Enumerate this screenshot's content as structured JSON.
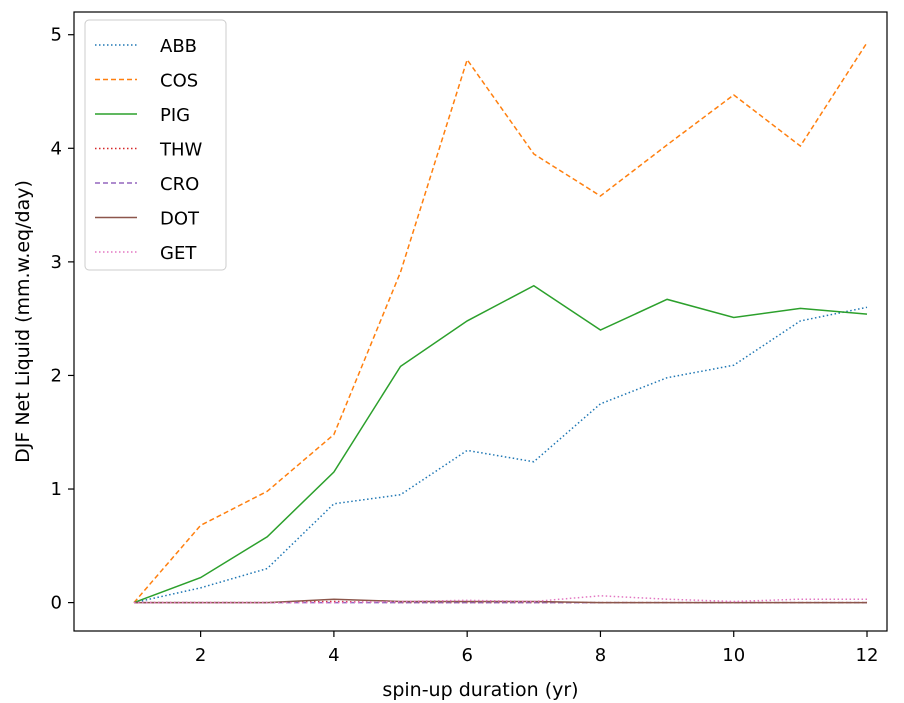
{
  "chart_data": {
    "type": "line",
    "title": "",
    "xlabel": "spin-up duration (yr)",
    "ylabel": "DJF Net Liquid (mm.w.eq/day)",
    "xlim": [
      0.1,
      12.3
    ],
    "ylim": [
      -0.25,
      5.2
    ],
    "xticks": [
      2,
      4,
      6,
      8,
      10,
      12
    ],
    "yticks": [
      0,
      1,
      2,
      3,
      4,
      5
    ],
    "grid": false,
    "legend_position": "top-left",
    "x": [
      1,
      2,
      3,
      4,
      5,
      6,
      7,
      8,
      9,
      10,
      11,
      12
    ],
    "series": [
      {
        "name": "ABB",
        "color": "#1f77b4",
        "linestyle": "dotted",
        "values": [
          0.0,
          0.13,
          0.3,
          0.87,
          0.95,
          1.34,
          1.24,
          1.75,
          1.98,
          2.09,
          2.48,
          2.6
        ]
      },
      {
        "name": "COS",
        "color": "#ff7f0e",
        "linestyle": "dashed",
        "values": [
          0.0,
          0.68,
          0.98,
          1.48,
          2.91,
          4.78,
          3.95,
          3.58,
          4.03,
          4.47,
          4.02,
          4.93
        ]
      },
      {
        "name": "PIG",
        "color": "#2ca02c",
        "linestyle": "solid",
        "values": [
          0.0,
          0.22,
          0.58,
          1.15,
          2.08,
          2.48,
          2.79,
          2.4,
          2.67,
          2.51,
          2.59,
          2.54
        ]
      },
      {
        "name": "THW",
        "color": "#d62728",
        "linestyle": "dotted",
        "values": [
          0.0,
          0.0,
          0.0,
          0.01,
          0.0,
          0.0,
          0.0,
          0.0,
          0.0,
          0.0,
          0.0,
          0.0
        ]
      },
      {
        "name": "CRO",
        "color": "#9467bd",
        "linestyle": "dashed",
        "values": [
          0.0,
          0.0,
          0.0,
          0.0,
          0.0,
          0.0,
          0.0,
          0.0,
          0.0,
          0.0,
          0.0,
          0.0
        ]
      },
      {
        "name": "DOT",
        "color": "#8c564b",
        "linestyle": "solid",
        "values": [
          0.0,
          0.0,
          0.0,
          0.03,
          0.01,
          0.01,
          0.01,
          0.0,
          0.0,
          0.0,
          0.0,
          0.0
        ]
      },
      {
        "name": "GET",
        "color": "#e377c2",
        "linestyle": "dotted",
        "values": [
          0.0,
          0.0,
          0.0,
          0.0,
          0.01,
          0.02,
          0.01,
          0.06,
          0.03,
          0.01,
          0.03,
          0.03
        ]
      }
    ]
  }
}
